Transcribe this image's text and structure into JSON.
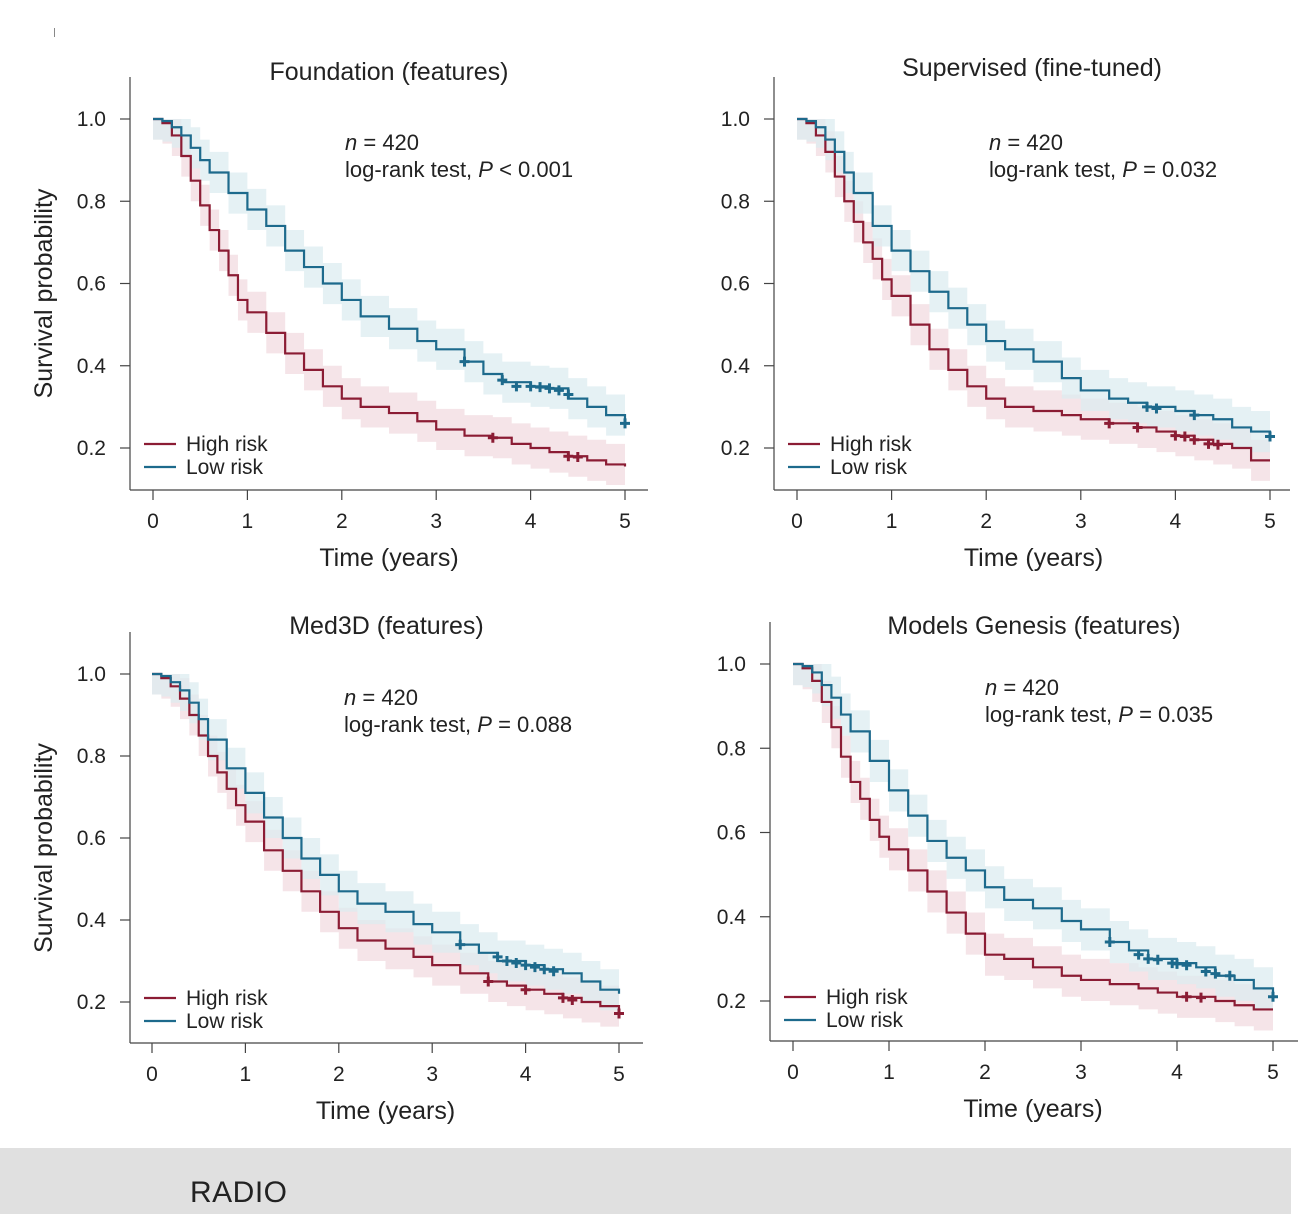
{
  "colors": {
    "high": "#8b1c34",
    "low": "#1d6a8c",
    "high_band": "#f2dbe0",
    "low_band": "#dcecf0"
  },
  "footer": {
    "label": "RADIO"
  },
  "chart_data": [
    {
      "type": "line",
      "title": "Foundation (features)",
      "xlabel": "Time (years)",
      "ylabel": "Survival probability",
      "xlim": [
        0,
        5
      ],
      "ylim": [
        0.1,
        1.1
      ],
      "xticks": [
        "0",
        "1",
        "2",
        "3",
        "4",
        "5"
      ],
      "yticks": [
        "1.0",
        "0.8",
        "0.6",
        "0.4",
        "0.2"
      ],
      "annotation": {
        "n_prefix": "n",
        "n_text": " = 420",
        "test_prefix": "log-rank test, ",
        "p_symbol": "P",
        "p_text": " < 0.001"
      },
      "legend": {
        "position": "bottom-left",
        "high": "High risk",
        "low": "Low risk"
      },
      "series": [
        {
          "name": "High risk",
          "band": 0.05,
          "x": [
            0,
            0.1,
            0.2,
            0.3,
            0.4,
            0.5,
            0.6,
            0.7,
            0.8,
            0.9,
            1.0,
            1.2,
            1.4,
            1.6,
            1.8,
            2.0,
            2.2,
            2.5,
            2.8,
            3.0,
            3.3,
            3.6,
            3.8,
            4.0,
            4.2,
            4.4,
            4.6,
            4.8,
            5.0
          ],
          "y": [
            1.0,
            0.99,
            0.96,
            0.91,
            0.85,
            0.79,
            0.73,
            0.68,
            0.62,
            0.56,
            0.53,
            0.48,
            0.43,
            0.39,
            0.35,
            0.32,
            0.3,
            0.285,
            0.265,
            0.245,
            0.23,
            0.225,
            0.21,
            0.2,
            0.19,
            0.18,
            0.17,
            0.16,
            0.155
          ],
          "censor_x": [
            3.6,
            4.4,
            4.5
          ],
          "censor_y": [
            0.225,
            0.18,
            0.178
          ]
        },
        {
          "name": "Low risk",
          "band": 0.05,
          "x": [
            0,
            0.1,
            0.2,
            0.3,
            0.4,
            0.5,
            0.6,
            0.8,
            1.0,
            1.2,
            1.4,
            1.6,
            1.8,
            2.0,
            2.2,
            2.5,
            2.8,
            3.0,
            3.3,
            3.5,
            3.7,
            4.0,
            4.2,
            4.4,
            4.6,
            4.8,
            5.0
          ],
          "y": [
            1.0,
            0.995,
            0.98,
            0.96,
            0.93,
            0.9,
            0.87,
            0.82,
            0.78,
            0.74,
            0.68,
            0.64,
            0.6,
            0.56,
            0.52,
            0.49,
            0.46,
            0.44,
            0.41,
            0.38,
            0.36,
            0.35,
            0.345,
            0.32,
            0.3,
            0.28,
            0.26
          ],
          "censor_x": [
            3.3,
            3.7,
            3.85,
            4.0,
            4.1,
            4.2,
            4.3,
            4.4,
            5.0
          ],
          "censor_y": [
            0.41,
            0.365,
            0.35,
            0.35,
            0.348,
            0.345,
            0.34,
            0.33,
            0.26
          ]
        }
      ]
    },
    {
      "type": "line",
      "title": "Supervised (fine-tuned)",
      "xlabel": "Time (years)",
      "ylabel": "",
      "xlim": [
        0,
        5
      ],
      "ylim": [
        0.1,
        1.1
      ],
      "xticks": [
        "0",
        "1",
        "2",
        "3",
        "4",
        "5"
      ],
      "yticks": [
        "1.0",
        "0.8",
        "0.6",
        "0.4",
        "0.2"
      ],
      "annotation": {
        "n_prefix": "n",
        "n_text": " = 420",
        "test_prefix": "log-rank test, ",
        "p_symbol": "P",
        "p_text": " = 0.032"
      },
      "legend": {
        "position": "bottom-left",
        "high": "High risk",
        "low": "Low risk"
      },
      "series": [
        {
          "name": "High risk",
          "band": 0.05,
          "x": [
            0,
            0.1,
            0.2,
            0.3,
            0.4,
            0.5,
            0.6,
            0.7,
            0.8,
            0.9,
            1.0,
            1.2,
            1.4,
            1.6,
            1.8,
            2.0,
            2.2,
            2.5,
            2.8,
            3.0,
            3.3,
            3.6,
            3.8,
            4.0,
            4.2,
            4.4,
            4.6,
            4.8,
            5.0
          ],
          "y": [
            1.0,
            0.99,
            0.96,
            0.92,
            0.86,
            0.8,
            0.75,
            0.7,
            0.66,
            0.61,
            0.57,
            0.5,
            0.44,
            0.39,
            0.35,
            0.32,
            0.3,
            0.29,
            0.28,
            0.27,
            0.26,
            0.25,
            0.24,
            0.23,
            0.22,
            0.21,
            0.2,
            0.17,
            0.17
          ],
          "censor_x": [
            3.3,
            3.6,
            4.0,
            4.1,
            4.2,
            4.35,
            4.45
          ],
          "censor_y": [
            0.26,
            0.25,
            0.23,
            0.228,
            0.22,
            0.21,
            0.208
          ]
        },
        {
          "name": "Low risk",
          "band": 0.05,
          "x": [
            0,
            0.1,
            0.2,
            0.3,
            0.4,
            0.5,
            0.6,
            0.8,
            1.0,
            1.2,
            1.4,
            1.6,
            1.8,
            2.0,
            2.2,
            2.5,
            2.8,
            3.0,
            3.3,
            3.5,
            3.7,
            4.0,
            4.2,
            4.4,
            4.6,
            4.8,
            5.0
          ],
          "y": [
            1.0,
            0.995,
            0.98,
            0.95,
            0.92,
            0.87,
            0.82,
            0.74,
            0.68,
            0.63,
            0.58,
            0.54,
            0.5,
            0.46,
            0.44,
            0.41,
            0.37,
            0.34,
            0.32,
            0.31,
            0.3,
            0.29,
            0.28,
            0.27,
            0.25,
            0.24,
            0.23
          ],
          "censor_x": [
            3.7,
            3.8,
            4.2,
            5.0
          ],
          "censor_y": [
            0.3,
            0.296,
            0.28,
            0.228
          ]
        }
      ]
    },
    {
      "type": "line",
      "title": "Med3D (features)",
      "xlabel": "Time (years)",
      "ylabel": "Survival probability",
      "xlim": [
        0,
        5
      ],
      "ylim": [
        0.1,
        1.1
      ],
      "xticks": [
        "0",
        "1",
        "2",
        "3",
        "4",
        "5"
      ],
      "yticks": [
        "1.0",
        "0.8",
        "0.6",
        "0.4",
        "0.2"
      ],
      "annotation": {
        "n_prefix": "n",
        "n_text": " = 420",
        "test_prefix": "log-rank test, ",
        "p_symbol": "P",
        "p_text": " = 0.088"
      },
      "legend": {
        "position": "bottom-left",
        "high": "High risk",
        "low": "Low risk"
      },
      "series": [
        {
          "name": "High risk",
          "band": 0.05,
          "x": [
            0,
            0.1,
            0.2,
            0.3,
            0.4,
            0.5,
            0.6,
            0.7,
            0.8,
            0.9,
            1.0,
            1.2,
            1.4,
            1.6,
            1.8,
            2.0,
            2.2,
            2.5,
            2.8,
            3.0,
            3.3,
            3.6,
            3.8,
            4.0,
            4.2,
            4.4,
            4.6,
            4.8,
            5.0
          ],
          "y": [
            1.0,
            0.99,
            0.97,
            0.94,
            0.9,
            0.85,
            0.8,
            0.76,
            0.72,
            0.68,
            0.64,
            0.57,
            0.52,
            0.47,
            0.42,
            0.38,
            0.35,
            0.33,
            0.31,
            0.29,
            0.27,
            0.25,
            0.24,
            0.23,
            0.22,
            0.21,
            0.2,
            0.19,
            0.17
          ],
          "censor_x": [
            3.6,
            4.0,
            4.4,
            4.5,
            5.0
          ],
          "censor_y": [
            0.25,
            0.23,
            0.21,
            0.205,
            0.172
          ]
        },
        {
          "name": "Low risk",
          "band": 0.05,
          "x": [
            0,
            0.1,
            0.2,
            0.3,
            0.4,
            0.5,
            0.6,
            0.8,
            1.0,
            1.2,
            1.4,
            1.6,
            1.8,
            2.0,
            2.2,
            2.5,
            2.8,
            3.0,
            3.3,
            3.5,
            3.7,
            4.0,
            4.2,
            4.4,
            4.6,
            4.8,
            5.0
          ],
          "y": [
            1.0,
            0.995,
            0.98,
            0.96,
            0.93,
            0.89,
            0.84,
            0.77,
            0.71,
            0.65,
            0.6,
            0.55,
            0.51,
            0.47,
            0.44,
            0.42,
            0.39,
            0.37,
            0.34,
            0.32,
            0.3,
            0.29,
            0.28,
            0.27,
            0.25,
            0.23,
            0.22
          ],
          "censor_x": [
            3.3,
            3.7,
            3.8,
            3.9,
            4.0,
            4.1,
            4.2,
            4.3
          ],
          "censor_y": [
            0.34,
            0.31,
            0.3,
            0.295,
            0.29,
            0.285,
            0.28,
            0.275
          ]
        }
      ]
    },
    {
      "type": "line",
      "title": "Models Genesis (features)",
      "xlabel": "Time (years)",
      "ylabel": "",
      "xlim": [
        0,
        5
      ],
      "ylim": [
        0.1,
        1.1
      ],
      "xticks": [
        "0",
        "1",
        "2",
        "3",
        "4",
        "5"
      ],
      "yticks": [
        "1.0",
        "0.8",
        "0.6",
        "0.4",
        "0.2"
      ],
      "annotation": {
        "n_prefix": "n",
        "n_text": " = 420",
        "test_prefix": "log-rank test, ",
        "p_symbol": "P",
        "p_text": " = 0.035"
      },
      "legend": {
        "position": "bottom-left",
        "high": "High risk",
        "low": "Low risk"
      },
      "series": [
        {
          "name": "High risk",
          "band": 0.05,
          "x": [
            0,
            0.1,
            0.2,
            0.3,
            0.4,
            0.5,
            0.6,
            0.7,
            0.8,
            0.9,
            1.0,
            1.2,
            1.4,
            1.6,
            1.8,
            2.0,
            2.2,
            2.5,
            2.8,
            3.0,
            3.3,
            3.6,
            3.8,
            4.0,
            4.2,
            4.4,
            4.6,
            4.8,
            5.0
          ],
          "y": [
            1.0,
            0.99,
            0.96,
            0.91,
            0.85,
            0.78,
            0.72,
            0.68,
            0.63,
            0.59,
            0.56,
            0.51,
            0.46,
            0.41,
            0.36,
            0.31,
            0.3,
            0.28,
            0.26,
            0.25,
            0.24,
            0.23,
            0.22,
            0.21,
            0.21,
            0.2,
            0.19,
            0.18,
            0.18
          ],
          "censor_x": [
            4.1,
            4.25
          ],
          "censor_y": [
            0.21,
            0.208
          ]
        },
        {
          "name": "Low risk",
          "band": 0.05,
          "x": [
            0,
            0.1,
            0.2,
            0.3,
            0.4,
            0.5,
            0.6,
            0.8,
            1.0,
            1.2,
            1.4,
            1.6,
            1.8,
            2.0,
            2.2,
            2.5,
            2.8,
            3.0,
            3.3,
            3.5,
            3.7,
            4.0,
            4.2,
            4.4,
            4.6,
            4.8,
            5.0
          ],
          "y": [
            1.0,
            0.995,
            0.98,
            0.95,
            0.92,
            0.88,
            0.84,
            0.77,
            0.7,
            0.64,
            0.58,
            0.54,
            0.51,
            0.47,
            0.44,
            0.42,
            0.39,
            0.37,
            0.34,
            0.32,
            0.3,
            0.29,
            0.28,
            0.26,
            0.25,
            0.23,
            0.21
          ],
          "censor_x": [
            3.3,
            3.6,
            3.7,
            3.8,
            3.95,
            4.0,
            4.1,
            4.3,
            4.4,
            4.55,
            5.0
          ],
          "censor_y": [
            0.34,
            0.31,
            0.3,
            0.298,
            0.29,
            0.288,
            0.285,
            0.27,
            0.265,
            0.26,
            0.21
          ]
        }
      ]
    }
  ]
}
